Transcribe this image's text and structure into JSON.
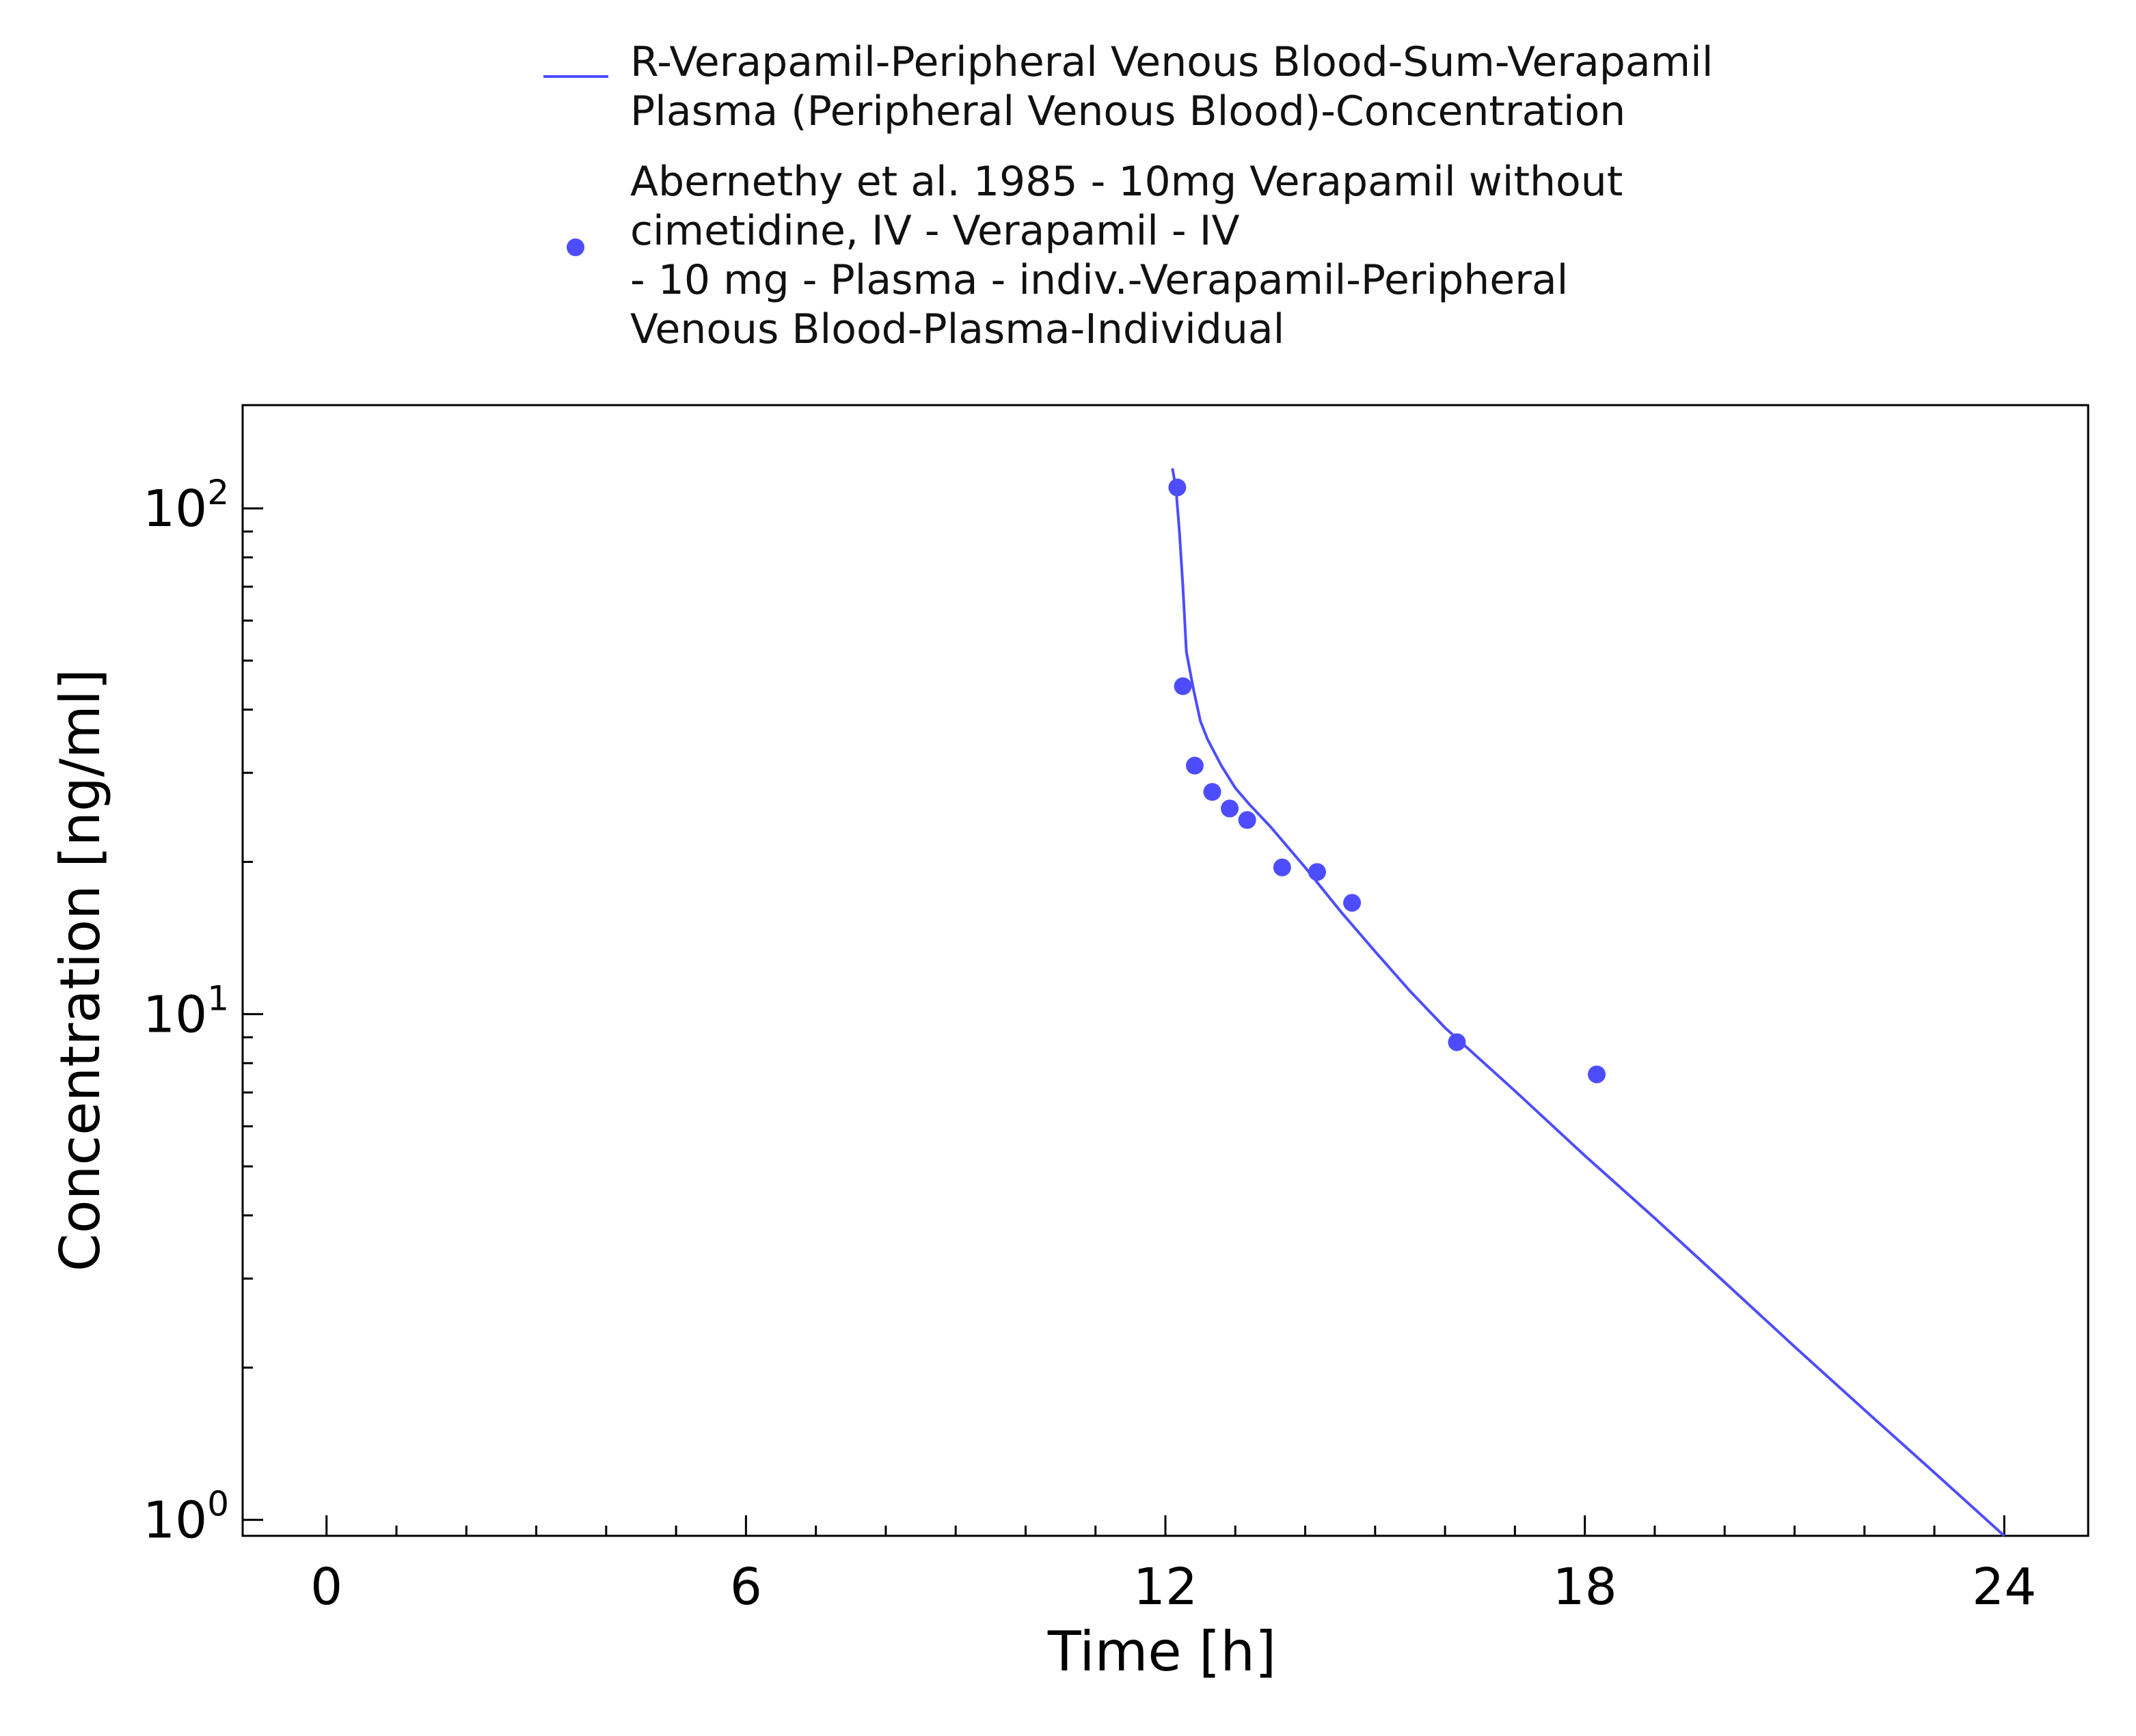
{
  "chart_data": {
    "type": "line",
    "xlabel": "Time [h]",
    "ylabel": "Concentration [ng/ml]",
    "xlim": [
      -1.2,
      25.2
    ],
    "ylim": [
      0.93,
      160
    ],
    "yscale": "log",
    "x_ticks": [
      0,
      6,
      12,
      18,
      24
    ],
    "x_tick_labels": [
      "0",
      "6",
      "12",
      "18",
      "24"
    ],
    "y_ticks": [
      1,
      10,
      100
    ],
    "y_tick_labels": [
      {
        "base": "10",
        "exp": "0"
      },
      {
        "base": "10",
        "exp": "1"
      },
      {
        "base": "10",
        "exp": "2"
      }
    ],
    "grid": false,
    "legend_position": "top",
    "series": [
      {
        "name": "R-Verapamil-Peripheral Venous Blood-Sum-Verapamil Plasma (Peripheral Venous Blood)-Concentration",
        "legend_lines": [
          "R-Verapamil-Peripheral Venous Blood-Sum-Verapamil",
          "Plasma (Peripheral Venous Blood)-Concentration"
        ],
        "kind": "line",
        "color": "#4d4dff",
        "x": [
          12.1,
          12.15,
          12.2,
          12.25,
          12.3,
          12.4,
          12.5,
          12.6,
          12.8,
          13.0,
          13.2,
          13.5,
          14.0,
          14.5,
          15.0,
          15.5,
          16.0,
          17.0,
          18.0,
          19.0,
          20.0,
          21.0,
          22.0,
          23.0,
          24.0
        ],
        "y": [
          120,
          110,
          90,
          70,
          52,
          44,
          38,
          35,
          31,
          28,
          26,
          23.5,
          19.5,
          16,
          13.3,
          11.1,
          9.4,
          7.05,
          5.25,
          3.95,
          2.95,
          2.2,
          1.65,
          1.24,
          0.93
        ]
      },
      {
        "name": "Abernethy et al. 1985 - 10mg Verapamil without cimetidine, IV - Verapamil - IV - 10 mg - Plasma - indiv.-Verapamil-Peripheral Venous Blood-Plasma-Individual",
        "legend_lines": [
          "Abernethy et al. 1985 - 10mg Verapamil without",
          "cimetidine, IV - Verapamil - IV",
          "- 10 mg - Plasma - indiv.-Verapamil-Peripheral",
          "Venous Blood-Plasma-Individual"
        ],
        "kind": "scatter",
        "color": "#4d4dff",
        "x": [
          12.17,
          12.25,
          12.42,
          12.67,
          12.92,
          13.17,
          13.67,
          14.17,
          14.67,
          16.17,
          18.17
        ],
        "y": [
          110,
          44.5,
          31,
          27.5,
          25.5,
          24.2,
          19.5,
          19.1,
          16.6,
          8.8,
          7.6
        ]
      }
    ]
  }
}
